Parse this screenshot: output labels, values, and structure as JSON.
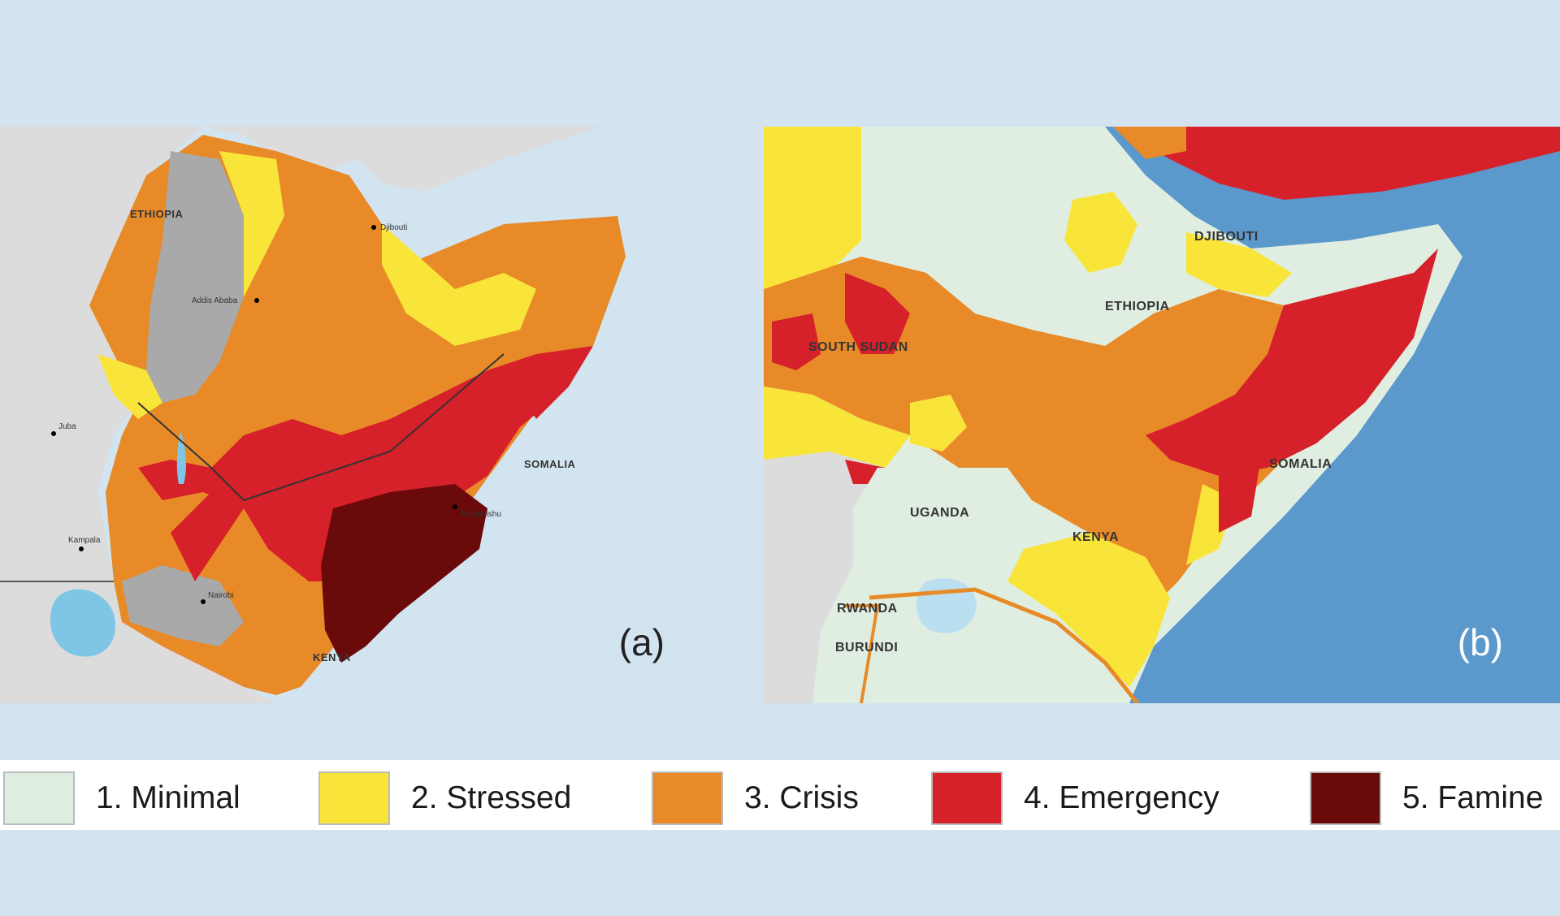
{
  "legend": {
    "items": [
      {
        "label": "1. Minimal",
        "color": "#dfeee0"
      },
      {
        "label": "2. Stressed",
        "color": "#f9e53a"
      },
      {
        "label": "3. Crisis",
        "color": "#e88a28"
      },
      {
        "label": "4. Emergency",
        "color": "#d6202a"
      },
      {
        "label": "5. Famine",
        "color": "#6b0a0a"
      }
    ]
  },
  "map_a": {
    "panel_label": "(a)",
    "countries": [
      "ETHIOPIA",
      "SOMALIA",
      "KENYA"
    ],
    "cities": [
      "Djibouti",
      "Addis Ababa",
      "Juba",
      "Kampala",
      "Nairobi",
      "Mogadishu"
    ]
  },
  "map_b": {
    "panel_label": "(b)",
    "countries": [
      "DJIBOUTI",
      "ETHIOPIA",
      "SOUTH SUDAN",
      "SOMALIA",
      "UGANDA",
      "KENYA",
      "RWANDA",
      "BURUNDI"
    ]
  },
  "colors": {
    "background": "#d3e3ef",
    "sea_a": "#d2e4f0",
    "sea_b": "#5b98cc",
    "land_grey": "#dcdcdc",
    "no_data": "#a9a9a9",
    "water": "#7fc6e6"
  }
}
